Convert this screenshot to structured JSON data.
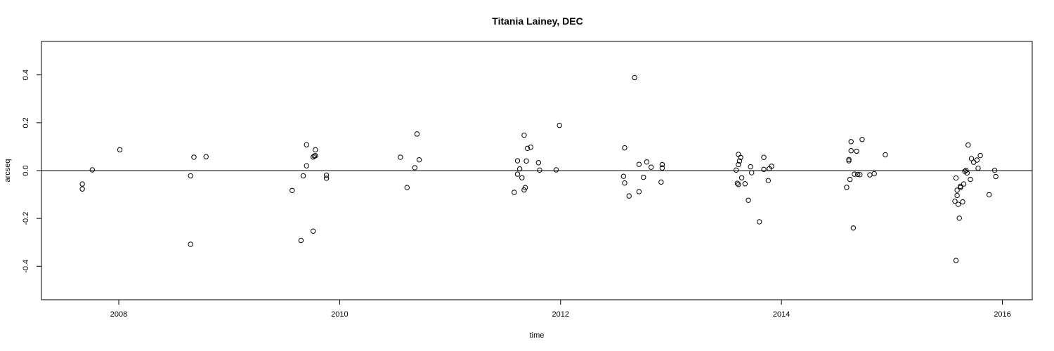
{
  "chart_data": {
    "type": "scatter",
    "title": "Titania Lainey, DEC",
    "xlabel": "time",
    "ylabel": "arcseq",
    "xlim": [
      2007.3,
      2016.27
    ],
    "ylim": [
      -0.54,
      0.54
    ],
    "xticks": [
      2008,
      2010,
      2012,
      2014,
      2016
    ],
    "yticks": [
      -0.4,
      -0.2,
      0.0,
      0.2,
      0.4
    ],
    "xtick_labels": [
      "2008",
      "2010",
      "2012",
      "2014",
      "2016"
    ],
    "ytick_labels": [
      "-0.4",
      "-0.2",
      "0.0",
      "0.2",
      "0.4"
    ],
    "reference_line_y": 0,
    "points": [
      {
        "x": 2007.67,
        "y": -0.056
      },
      {
        "x": 2007.67,
        "y": -0.077
      },
      {
        "x": 2007.76,
        "y": 0.003
      },
      {
        "x": 2008.01,
        "y": 0.087
      },
      {
        "x": 2008.65,
        "y": -0.022
      },
      {
        "x": 2008.65,
        "y": -0.308
      },
      {
        "x": 2008.68,
        "y": 0.056
      },
      {
        "x": 2008.79,
        "y": 0.058
      },
      {
        "x": 2009.57,
        "y": -0.083
      },
      {
        "x": 2009.65,
        "y": -0.292
      },
      {
        "x": 2009.67,
        "y": -0.022
      },
      {
        "x": 2009.7,
        "y": 0.02
      },
      {
        "x": 2009.7,
        "y": 0.108
      },
      {
        "x": 2009.76,
        "y": 0.057
      },
      {
        "x": 2009.77,
        "y": 0.061
      },
      {
        "x": 2009.78,
        "y": 0.062
      },
      {
        "x": 2009.78,
        "y": 0.087
      },
      {
        "x": 2009.76,
        "y": -0.253
      },
      {
        "x": 2009.88,
        "y": -0.019
      },
      {
        "x": 2009.88,
        "y": -0.032
      },
      {
        "x": 2010.55,
        "y": 0.056
      },
      {
        "x": 2010.61,
        "y": -0.071
      },
      {
        "x": 2010.68,
        "y": 0.012
      },
      {
        "x": 2010.7,
        "y": 0.153
      },
      {
        "x": 2010.72,
        "y": 0.045
      },
      {
        "x": 2011.58,
        "y": -0.091
      },
      {
        "x": 2011.61,
        "y": -0.015
      },
      {
        "x": 2011.61,
        "y": 0.041
      },
      {
        "x": 2011.63,
        "y": 0.007
      },
      {
        "x": 2011.65,
        "y": -0.03
      },
      {
        "x": 2011.67,
        "y": -0.081
      },
      {
        "x": 2011.68,
        "y": -0.071
      },
      {
        "x": 2011.67,
        "y": 0.148
      },
      {
        "x": 2011.69,
        "y": 0.04
      },
      {
        "x": 2011.7,
        "y": 0.093
      },
      {
        "x": 2011.73,
        "y": 0.098
      },
      {
        "x": 2011.8,
        "y": 0.033
      },
      {
        "x": 2011.81,
        "y": 0.002
      },
      {
        "x": 2011.96,
        "y": 0.003
      },
      {
        "x": 2011.99,
        "y": 0.189
      },
      {
        "x": 2012.57,
        "y": -0.024
      },
      {
        "x": 2012.58,
        "y": 0.095
      },
      {
        "x": 2012.58,
        "y": -0.052
      },
      {
        "x": 2012.62,
        "y": -0.106
      },
      {
        "x": 2012.67,
        "y": 0.389
      },
      {
        "x": 2012.71,
        "y": -0.088
      },
      {
        "x": 2012.71,
        "y": 0.026
      },
      {
        "x": 2012.75,
        "y": -0.028
      },
      {
        "x": 2012.78,
        "y": 0.036
      },
      {
        "x": 2012.82,
        "y": 0.014
      },
      {
        "x": 2012.92,
        "y": 0.025
      },
      {
        "x": 2012.91,
        "y": -0.048
      },
      {
        "x": 2012.92,
        "y": 0.011
      },
      {
        "x": 2013.59,
        "y": 0.002
      },
      {
        "x": 2013.6,
        "y": -0.053
      },
      {
        "x": 2013.61,
        "y": 0.068
      },
      {
        "x": 2013.61,
        "y": 0.025
      },
      {
        "x": 2013.62,
        "y": 0.04
      },
      {
        "x": 2013.61,
        "y": -0.058
      },
      {
        "x": 2013.63,
        "y": 0.055
      },
      {
        "x": 2013.64,
        "y": -0.03
      },
      {
        "x": 2013.67,
        "y": -0.055
      },
      {
        "x": 2013.7,
        "y": -0.124
      },
      {
        "x": 2013.72,
        "y": 0.016
      },
      {
        "x": 2013.73,
        "y": -0.009
      },
      {
        "x": 2013.8,
        "y": -0.214
      },
      {
        "x": 2013.84,
        "y": 0.055
      },
      {
        "x": 2013.84,
        "y": 0.005
      },
      {
        "x": 2013.88,
        "y": -0.042
      },
      {
        "x": 2013.89,
        "y": 0.008
      },
      {
        "x": 2013.91,
        "y": 0.018
      },
      {
        "x": 2014.59,
        "y": -0.07
      },
      {
        "x": 2014.61,
        "y": 0.041
      },
      {
        "x": 2014.61,
        "y": 0.046
      },
      {
        "x": 2014.62,
        "y": -0.037
      },
      {
        "x": 2014.63,
        "y": 0.083
      },
      {
        "x": 2014.63,
        "y": 0.121
      },
      {
        "x": 2014.65,
        "y": -0.24
      },
      {
        "x": 2014.66,
        "y": -0.015
      },
      {
        "x": 2014.68,
        "y": 0.081
      },
      {
        "x": 2014.69,
        "y": -0.016
      },
      {
        "x": 2014.71,
        "y": -0.017
      },
      {
        "x": 2014.73,
        "y": 0.13
      },
      {
        "x": 2014.8,
        "y": -0.018
      },
      {
        "x": 2014.84,
        "y": -0.013
      },
      {
        "x": 2014.94,
        "y": 0.066
      },
      {
        "x": 2015.57,
        "y": -0.128
      },
      {
        "x": 2015.58,
        "y": -0.031
      },
      {
        "x": 2015.58,
        "y": -0.376
      },
      {
        "x": 2015.59,
        "y": -0.082
      },
      {
        "x": 2015.59,
        "y": -0.104
      },
      {
        "x": 2015.6,
        "y": -0.141
      },
      {
        "x": 2015.61,
        "y": -0.199
      },
      {
        "x": 2015.62,
        "y": -0.071
      },
      {
        "x": 2015.62,
        "y": -0.066
      },
      {
        "x": 2015.64,
        "y": -0.131
      },
      {
        "x": 2015.65,
        "y": -0.056
      },
      {
        "x": 2015.66,
        "y": -0.003
      },
      {
        "x": 2015.67,
        "y": 0.001
      },
      {
        "x": 2015.68,
        "y": -0.01
      },
      {
        "x": 2015.69,
        "y": 0.107
      },
      {
        "x": 2015.71,
        "y": -0.037
      },
      {
        "x": 2015.72,
        "y": 0.05
      },
      {
        "x": 2015.74,
        "y": 0.035
      },
      {
        "x": 2015.77,
        "y": 0.044
      },
      {
        "x": 2015.78,
        "y": 0.01
      },
      {
        "x": 2015.8,
        "y": 0.063
      },
      {
        "x": 2015.88,
        "y": -0.101
      },
      {
        "x": 2015.93,
        "y": 0.001
      },
      {
        "x": 2015.94,
        "y": -0.025
      }
    ],
    "grid": false,
    "legend": "none"
  }
}
